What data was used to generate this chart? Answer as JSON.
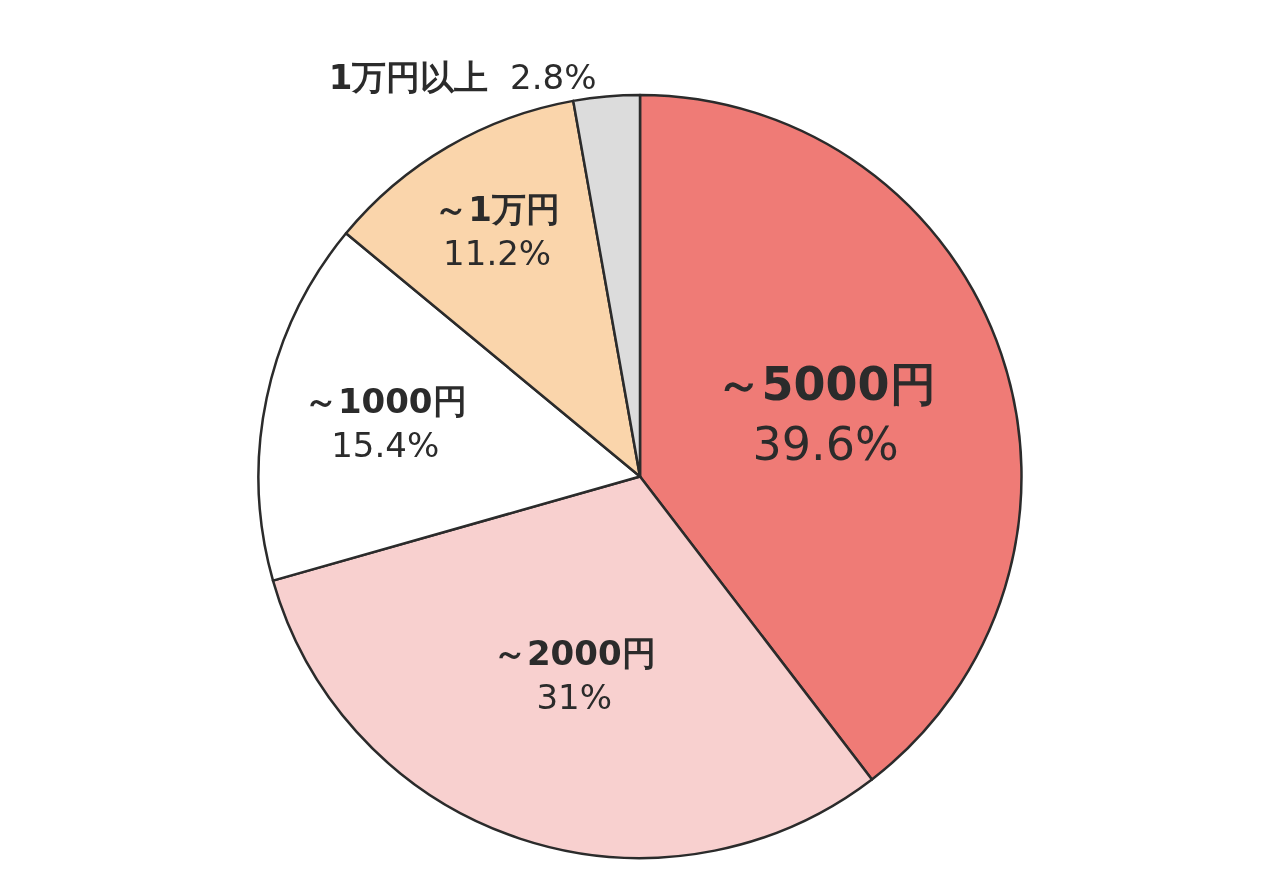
{
  "chart_data": {
    "type": "pie",
    "categories": [
      "～5000円",
      "～2000円",
      "～1000円",
      "～1万円",
      "1万円以上"
    ],
    "values": [
      39.6,
      31,
      15.4,
      11.2,
      2.8
    ],
    "value_labels": [
      "39.6%",
      "31%",
      "15.4%",
      "11.2%",
      "2.8%"
    ],
    "colors": [
      "#ef7b76",
      "#f8d0cf",
      "#ffffff",
      "#fad5ab",
      "#dcdcdc"
    ],
    "legend": false
  }
}
